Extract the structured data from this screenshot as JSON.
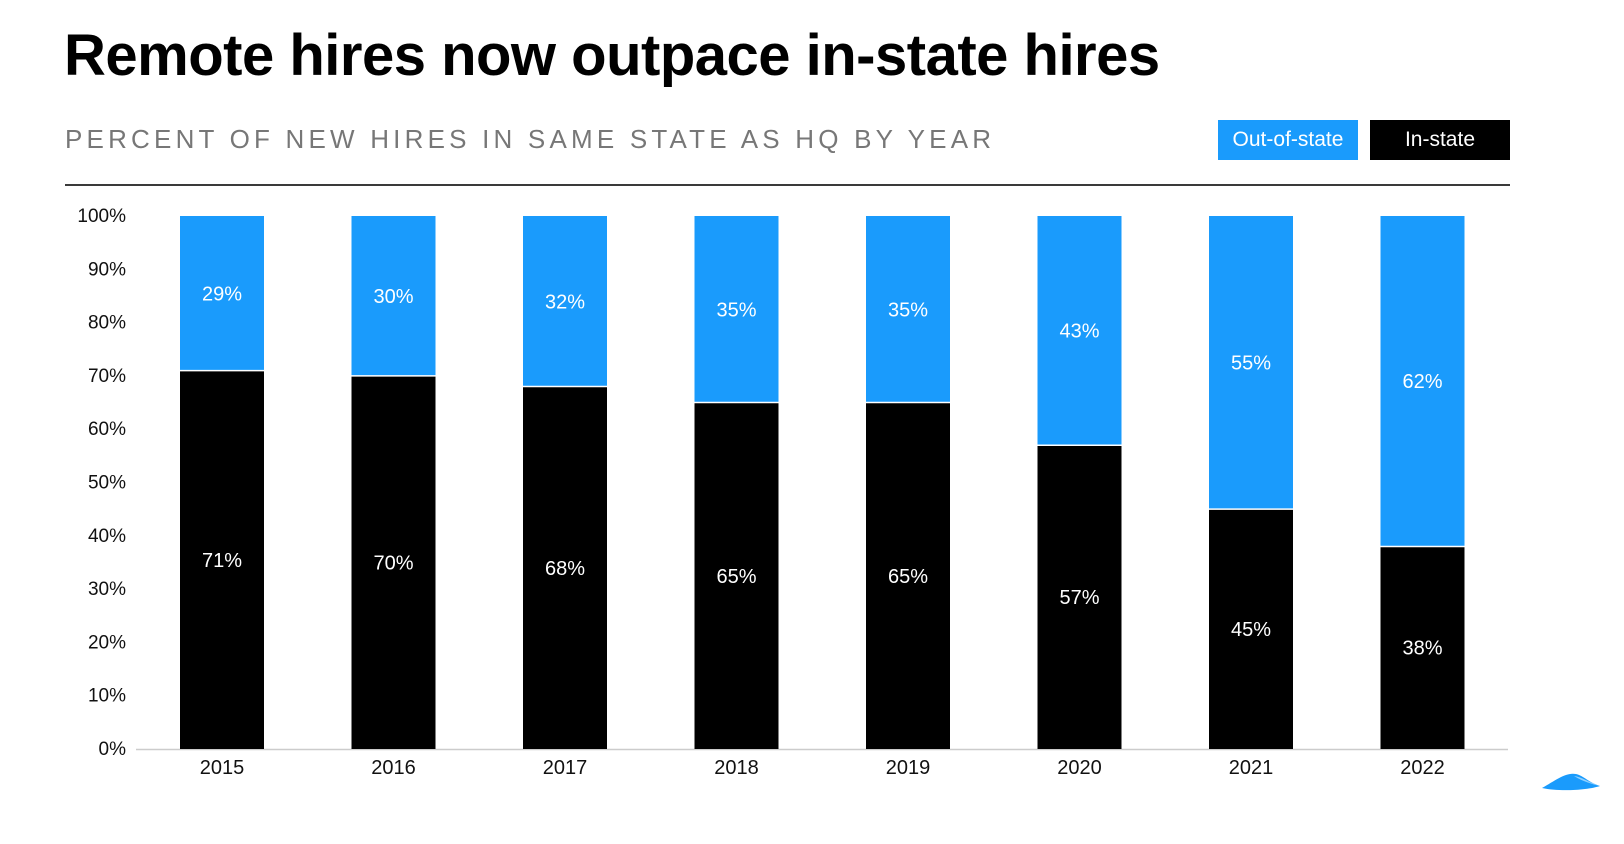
{
  "title": "Remote hires now outpace in-state hires",
  "subtitle": "PERCENT OF NEW HIRES IN SAME STATE AS HQ BY YEAR",
  "colors": {
    "out_of_state": "#1a9bfc",
    "in_state": "#000000",
    "label_text": "#ffffff"
  },
  "chart_data": {
    "type": "bar",
    "stacked": true,
    "title": "Remote hires now outpace in-state hires",
    "subtitle": "PERCENT OF NEW HIRES IN SAME STATE AS HQ BY YEAR",
    "categories": [
      "2015",
      "2016",
      "2017",
      "2018",
      "2019",
      "2020",
      "2021",
      "2022"
    ],
    "series": [
      {
        "name": "In-state",
        "color": "#000000",
        "values": [
          71,
          70,
          68,
          65,
          65,
          57,
          45,
          38
        ],
        "labels": [
          "71%",
          "70%",
          "68%",
          "65%",
          "65%",
          "57%",
          "45%",
          "38%"
        ]
      },
      {
        "name": "Out-of-state",
        "color": "#1a9bfc",
        "values": [
          29,
          30,
          32,
          35,
          35,
          43,
          55,
          62
        ],
        "labels": [
          "29%",
          "30%",
          "32%",
          "35%",
          "35%",
          "43%",
          "55%",
          "62%"
        ]
      }
    ],
    "ylim": [
      0,
      100
    ],
    "yticks": [
      0,
      10,
      20,
      30,
      40,
      50,
      60,
      70,
      80,
      90,
      100
    ],
    "ytick_labels": [
      "0%",
      "10%",
      "20%",
      "30%",
      "40%",
      "50%",
      "60%",
      "70%",
      "80%",
      "90%",
      "100%"
    ],
    "xlabel": "",
    "ylabel": "",
    "legend": {
      "position": "top-right",
      "entries": [
        "Out-of-state",
        "In-state"
      ]
    },
    "grid": false
  }
}
